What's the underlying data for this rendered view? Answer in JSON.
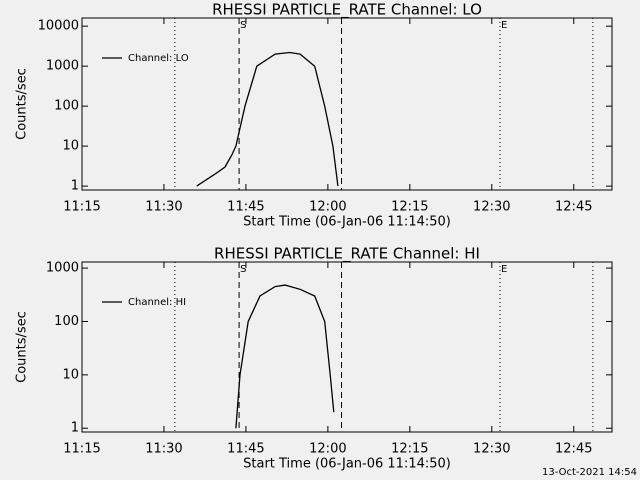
{
  "chart_data": [
    {
      "type": "line",
      "title": "RHESSI PARTICLE_RATE Channel: LO",
      "x_label": "Start Time (06-Jan-06 11:14:50)",
      "y_label": "Counts/sec",
      "log_y": true,
      "legend": "upper left",
      "xlim": [
        "11:15",
        "12:52"
      ],
      "xticks": [
        "11:15",
        "11:30",
        "11:45",
        "12:00",
        "12:15",
        "12:30",
        "12:45"
      ],
      "ylim": [
        0.8,
        16000
      ],
      "yticks": [
        1,
        10,
        100,
        1000,
        10000
      ],
      "x": [
        "11:36:00",
        "11:39:20",
        "11:41:10",
        "11:42:25",
        "11:43:10",
        "11:44:50",
        "11:47:00",
        "11:50:20",
        "11:53:00",
        "11:54:55",
        "11:57:35",
        "11:59:25",
        "12:00:55",
        "12:01:50"
      ],
      "series": [
        {
          "name": "Channel: LO",
          "color": "#000000",
          "values": [
            1,
            2,
            3,
            6,
            10,
            100,
            1000,
            2000,
            2200,
            2000,
            1000,
            100,
            10,
            1
          ]
        }
      ],
      "vertical_lines": [
        {
          "x": "11:32:00",
          "style": "dotted"
        },
        {
          "x": "11:43:45",
          "style": "dashed",
          "label": "S"
        },
        {
          "x": "12:02:30",
          "style": "dashed"
        },
        {
          "x": "12:31:30",
          "style": "dotted",
          "label": "E"
        },
        {
          "x": "12:48:30",
          "style": "dotted"
        }
      ]
    },
    {
      "type": "line",
      "title": "RHESSI PARTICLE_RATE Channel: HI",
      "x_label": "Start Time (06-Jan-06 11:14:50)",
      "y_label": "Counts/sec",
      "log_y": true,
      "legend": "upper left",
      "xlim": [
        "11:15",
        "12:52"
      ],
      "xticks": [
        "11:15",
        "11:30",
        "11:45",
        "12:00",
        "12:15",
        "12:30",
        "12:45"
      ],
      "ylim": [
        0.85,
        1300
      ],
      "yticks": [
        1,
        10,
        100,
        1000
      ],
      "x": [
        "11:43:10",
        "11:43:55",
        "11:45:25",
        "11:47:35",
        "11:50:20",
        "11:52:10",
        "11:54:55",
        "11:57:35",
        "11:59:25",
        "12:00:25",
        "12:01:05"
      ],
      "series": [
        {
          "name": "Channel: HI",
          "color": "#000000",
          "values": [
            1,
            10,
            100,
            300,
            450,
            480,
            400,
            300,
            100,
            10,
            2
          ]
        }
      ],
      "vertical_lines": [
        {
          "x": "11:32:00",
          "style": "dotted"
        },
        {
          "x": "11:43:45",
          "style": "dashed",
          "label": "S"
        },
        {
          "x": "12:02:30",
          "style": "dashed"
        },
        {
          "x": "12:31:30",
          "style": "dotted",
          "label": "E"
        },
        {
          "x": "12:48:30",
          "style": "dotted"
        }
      ]
    }
  ],
  "footer": "13-Oct-2021 14:54"
}
